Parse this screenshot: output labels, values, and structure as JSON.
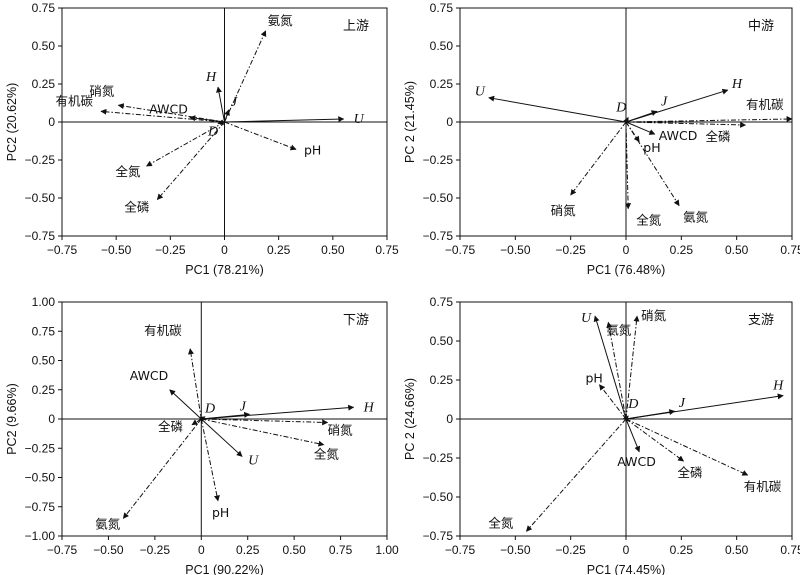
{
  "chart_data": [
    {
      "type": "scatter",
      "title": "上游",
      "xlabel": "PC1 (78.21%)",
      "ylabel": "PC2 (20.62%)",
      "xlim": [
        -0.75,
        0.75
      ],
      "ylim": [
        -0.75,
        0.75
      ],
      "xticks": [
        -0.75,
        -0.5,
        -0.25,
        0,
        0.25,
        0.5,
        0.75
      ],
      "yticks": [
        -0.75,
        -0.5,
        -0.25,
        0,
        0.25,
        0.5,
        0.75
      ],
      "xtick_labels": [
        "−0.75",
        "−0.50",
        "−0.25",
        "0",
        "0.25",
        "0.50",
        "0.75"
      ],
      "ytick_labels": [
        "−0.75",
        "−0.50",
        "−0.25",
        "0",
        "0.25",
        "0.50",
        "0.75"
      ],
      "vectors": [
        {
          "label": "氨氮",
          "x": 0.19,
          "y": 0.6,
          "style": "dashdot"
        },
        {
          "label": "H",
          "x": -0.03,
          "y": 0.23,
          "style": "solid",
          "italic": true
        },
        {
          "label": "J",
          "x": 0.02,
          "y": 0.08,
          "style": "solid",
          "italic": true
        },
        {
          "label": "U",
          "x": 0.55,
          "y": 0.02,
          "style": "solid",
          "italic": true
        },
        {
          "label": "pH",
          "x": 0.33,
          "y": -0.18,
          "style": "dashdot"
        },
        {
          "label": "全磷",
          "x": -0.31,
          "y": -0.51,
          "style": "dashdot"
        },
        {
          "label": "全氮",
          "x": -0.36,
          "y": -0.29,
          "style": "dashdot"
        },
        {
          "label": "有机碳",
          "x": -0.57,
          "y": 0.07,
          "style": "dashdot"
        },
        {
          "label": "硝氮",
          "x": -0.49,
          "y": 0.11,
          "style": "dashdot"
        },
        {
          "label": "AWCD",
          "x": -0.16,
          "y": 0.03,
          "style": "solid"
        },
        {
          "label": "D",
          "x": -0.03,
          "y": -0.01,
          "style": "solid",
          "italic": true
        }
      ]
    },
    {
      "type": "scatter",
      "title": "中游",
      "xlabel": "PC1 (76.48%)",
      "ylabel": "PC 2 (21.45%)",
      "xlim": [
        -0.75,
        0.75
      ],
      "ylim": [
        -0.75,
        0.75
      ],
      "xticks": [
        -0.75,
        -0.5,
        -0.25,
        0,
        0.25,
        0.5,
        0.75
      ],
      "yticks": [
        -0.75,
        -0.5,
        -0.25,
        0,
        0.25,
        0.5,
        0.75
      ],
      "xtick_labels": [
        "−0.75",
        "−0.50",
        "−0.25",
        "0",
        "0.25",
        "0.50",
        "0.75"
      ],
      "ytick_labels": [
        "−0.75",
        "−0.50",
        "−0.25",
        "0",
        "0.25",
        "0.50",
        "0.75"
      ],
      "vectors": [
        {
          "label": "U",
          "x": -0.62,
          "y": 0.16,
          "style": "solid",
          "italic": true
        },
        {
          "label": "H",
          "x": 0.46,
          "y": 0.21,
          "style": "solid",
          "italic": true
        },
        {
          "label": "J",
          "x": 0.14,
          "y": 0.07,
          "style": "solid",
          "italic": true
        },
        {
          "label": "有机碳",
          "x": 0.75,
          "y": 0.02,
          "style": "dashdot"
        },
        {
          "label": "全磷",
          "x": 0.54,
          "y": -0.02,
          "style": "dashdot"
        },
        {
          "label": "AWCD",
          "x": 0.13,
          "y": -0.08,
          "style": "solid"
        },
        {
          "label": "pH",
          "x": 0.06,
          "y": -0.13,
          "style": "dashdot"
        },
        {
          "label": "氨氮",
          "x": 0.24,
          "y": -0.55,
          "style": "dashdot"
        },
        {
          "label": "全氮",
          "x": 0.01,
          "y": -0.57,
          "style": "dashdot"
        },
        {
          "label": "硝氮",
          "x": -0.25,
          "y": -0.48,
          "style": "dashdot"
        },
        {
          "label": "D",
          "x": 0.01,
          "y": 0.03,
          "style": "solid",
          "italic": true
        }
      ]
    },
    {
      "type": "scatter",
      "title": "下游",
      "xlabel": "PC1 (90.22%)",
      "ylabel": "PC2 (9.66%)",
      "xlim": [
        -0.75,
        1.0
      ],
      "ylim": [
        -1.0,
        1.0
      ],
      "xticks": [
        -0.75,
        -0.5,
        -0.25,
        0,
        0.25,
        0.5,
        0.75,
        1.0
      ],
      "yticks": [
        -1.0,
        -0.75,
        -0.5,
        -0.25,
        0,
        0.25,
        0.5,
        0.75,
        1.0
      ],
      "xtick_labels": [
        "−0.75",
        "−0.50",
        "−0.25",
        "0",
        "0.25",
        "0.50",
        "0.75",
        "1.00"
      ],
      "ytick_labels": [
        "−1.00",
        "−0.75",
        "−0.50",
        "−0.25",
        "0",
        "0.25",
        "0.50",
        "0.75",
        "1.00"
      ],
      "vectors": [
        {
          "label": "有机碳",
          "x": -0.06,
          "y": 0.6,
          "style": "dashdot"
        },
        {
          "label": "AWCD",
          "x": -0.17,
          "y": 0.25,
          "style": "solid"
        },
        {
          "label": "H",
          "x": 0.82,
          "y": 0.1,
          "style": "solid",
          "italic": true
        },
        {
          "label": "J",
          "x": 0.26,
          "y": 0.04,
          "style": "solid",
          "italic": true
        },
        {
          "label": "硝氮",
          "x": 0.68,
          "y": -0.03,
          "style": "dashdot"
        },
        {
          "label": "全氮",
          "x": 0.66,
          "y": -0.22,
          "style": "dashdot"
        },
        {
          "label": "U",
          "x": 0.22,
          "y": -0.32,
          "style": "solid",
          "italic": true
        },
        {
          "label": "pH",
          "x": 0.09,
          "y": -0.7,
          "style": "dashdot"
        },
        {
          "label": "氨氮",
          "x": -0.42,
          "y": -0.85,
          "style": "dashdot"
        },
        {
          "label": "全磷",
          "x": -0.05,
          "y": -0.05,
          "style": "dashdot"
        },
        {
          "label": "D",
          "x": 0.02,
          "y": 0.02,
          "style": "solid",
          "italic": true
        }
      ]
    },
    {
      "type": "scatter",
      "title": "支游",
      "xlabel": "PC1 (74.45%)",
      "ylabel": "PC 2 (24.66%)",
      "xlim": [
        -0.75,
        0.75
      ],
      "ylim": [
        -0.75,
        0.75
      ],
      "xticks": [
        -0.75,
        -0.5,
        -0.25,
        0,
        0.25,
        0.5,
        0.75
      ],
      "yticks": [
        -0.75,
        -0.5,
        -0.25,
        0,
        0.25,
        0.5,
        0.75
      ],
      "xtick_labels": [
        "−0.75",
        "−0.50",
        "−0.25",
        "0",
        "0.25",
        "0.50",
        "0.75"
      ],
      "ytick_labels": [
        "−0.75",
        "−0.50",
        "−0.25",
        "0",
        "0.25",
        "0.50",
        "0.75"
      ],
      "vectors": [
        {
          "label": "U",
          "x": -0.14,
          "y": 0.66,
          "style": "solid",
          "italic": true
        },
        {
          "label": "氨氮",
          "x": -0.08,
          "y": 0.62,
          "style": "dashdot"
        },
        {
          "label": "硝氮",
          "x": 0.05,
          "y": 0.66,
          "style": "dashdot"
        },
        {
          "label": "pH",
          "x": -0.12,
          "y": 0.22,
          "style": "dashdot"
        },
        {
          "label": "H",
          "x": 0.71,
          "y": 0.15,
          "style": "solid",
          "italic": true
        },
        {
          "label": "J",
          "x": 0.22,
          "y": 0.05,
          "style": "solid",
          "italic": true
        },
        {
          "label": "AWCD",
          "x": 0.06,
          "y": -0.21,
          "style": "solid"
        },
        {
          "label": "全磷",
          "x": 0.26,
          "y": -0.27,
          "style": "dashdot"
        },
        {
          "label": "有机碳",
          "x": 0.55,
          "y": -0.36,
          "style": "dashdot"
        },
        {
          "label": "全氮",
          "x": -0.45,
          "y": -0.72,
          "style": "dashdot"
        },
        {
          "label": "D",
          "x": 0.01,
          "y": 0.02,
          "style": "solid",
          "italic": true
        }
      ]
    }
  ]
}
